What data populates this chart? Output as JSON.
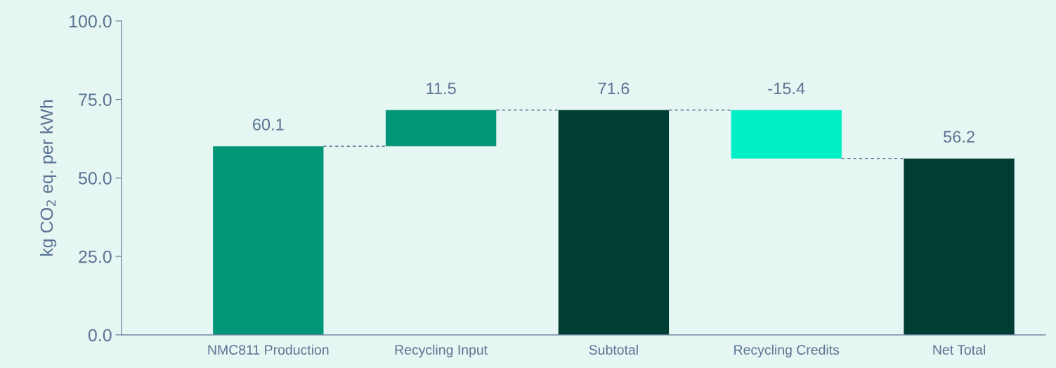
{
  "chart_data": {
    "type": "bar",
    "ylabel": "kg CO$_{2}$ eq. per kWh",
    "categories": [
      "NMC811 Production",
      "Recycling Input",
      "Subtotal",
      "Recycling Credits",
      "Net Total"
    ],
    "values": [
      60.1,
      11.5,
      71.6,
      -15.4,
      56.2
    ],
    "base": [
      0,
      60.1,
      0,
      71.6,
      0
    ],
    "colors": [
      "#009677",
      "#009677",
      "#003d33",
      "#00efc6",
      "#003d33"
    ],
    "ylim": [
      0,
      100
    ],
    "yticks": [
      {
        "value": 0,
        "label": "0.0"
      },
      {
        "value": 25,
        "label": "25.0"
      },
      {
        "value": 50,
        "label": "50.0"
      },
      {
        "value": 75,
        "label": "75.0"
      },
      {
        "value": 100,
        "label": "100.0"
      }
    ],
    "data_labels": true,
    "grid": false,
    "legend": false
  }
}
